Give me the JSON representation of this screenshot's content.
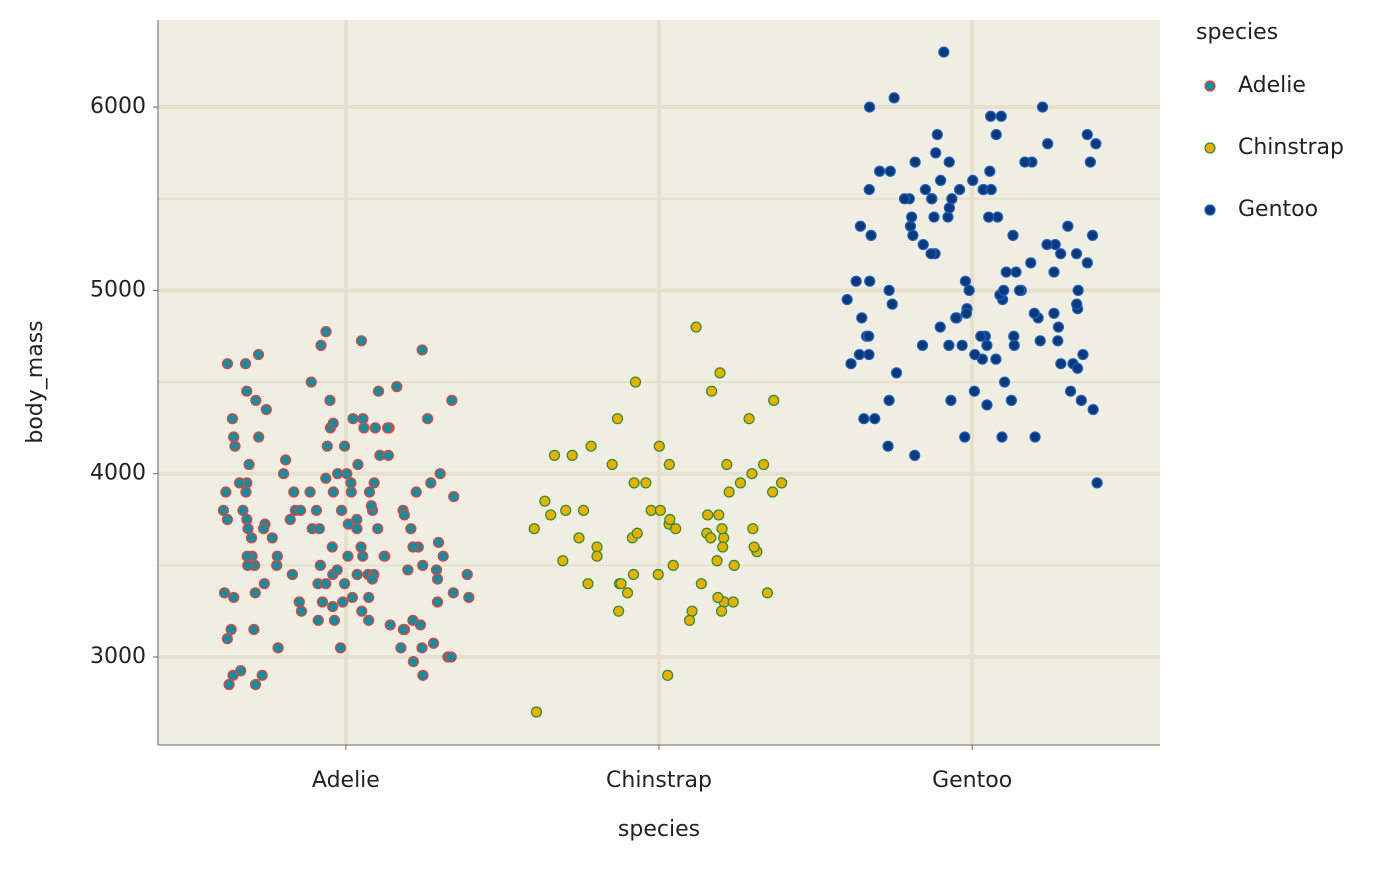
{
  "chart_data": {
    "type": "strip",
    "x_label": "species",
    "y_label": "body_mass",
    "categories": [
      "Adelie",
      "Chinstrap",
      "Gentoo"
    ],
    "legend_title": "species",
    "legend_position": "right",
    "ylim": [
      2520,
      6475
    ],
    "yticks": [
      3000,
      4000,
      5000,
      6000
    ],
    "yticks_minor": [
      3500,
      4500,
      5500
    ],
    "grid": true,
    "series": [
      {
        "name": "Adelie",
        "color": "#1b8a9a",
        "stroke": "#e0443a",
        "values": [
          3750,
          3800,
          3250,
          3450,
          3650,
          3625,
          4675,
          3475,
          4250,
          3300,
          3700,
          3200,
          3800,
          4400,
          3700,
          3450,
          4500,
          3325,
          4200,
          3400,
          3600,
          3800,
          3950,
          3800,
          3800,
          3550,
          3200,
          3150,
          3950,
          3250,
          3900,
          3300,
          3900,
          3325,
          4150,
          3950,
          3550,
          3300,
          4650,
          3150,
          3900,
          3100,
          4400,
          3000,
          4600,
          3425,
          2975,
          3450,
          4150,
          3500,
          4300,
          3450,
          4050,
          2900,
          3700,
          3550,
          3800,
          2850,
          3750,
          3150,
          4400,
          3600,
          4050,
          2850,
          3950,
          3350,
          4100,
          3050,
          4450,
          3600,
          3900,
          3550,
          4150,
          3700,
          4250,
          3700,
          3900,
          3550,
          4000,
          3200,
          4700,
          3800,
          4200,
          3350,
          3550,
          3800,
          3500,
          3950,
          3600,
          3550,
          4300,
          3400,
          4450,
          3300,
          4300,
          3700,
          4350,
          2900,
          4100,
          3725,
          4725,
          3075,
          4250,
          2925,
          3550,
          3750,
          3900,
          3175,
          4775,
          3825,
          4600,
          3200,
          4275,
          3900,
          4075,
          2900,
          3775,
          3350,
          3325,
          3150,
          3500,
          3450,
          3875,
          3050,
          4000,
          3275,
          4300,
          3050,
          4000,
          3325,
          3500,
          3500,
          4475,
          3425,
          3900,
          3175,
          3975,
          3400,
          4250,
          3400,
          3475,
          3050,
          3725,
          3000,
          3650,
          4250,
          3475,
          3450,
          3750,
          3700,
          4000
        ]
      },
      {
        "name": "Chinstrap",
        "color": "#e6b000",
        "stroke": "#2e8b2e",
        "values": [
          3500,
          3900,
          3650,
          3525,
          3725,
          3950,
          3250,
          3750,
          4150,
          3700,
          3800,
          3775,
          3700,
          4050,
          3575,
          4050,
          3300,
          3700,
          3450,
          4400,
          3600,
          3400,
          2900,
          3800,
          3300,
          4150,
          3400,
          3800,
          3700,
          4550,
          3200,
          4300,
          3350,
          4100,
          3600,
          3900,
          3850,
          4800,
          2700,
          4500,
          3950,
          3650,
          3550,
          3500,
          3675,
          4450,
          3400,
          4300,
          3250,
          3675,
          3325,
          3950,
          3600,
          4050,
          3350,
          3450,
          3250,
          4050,
          3800,
          3525,
          3950,
          3650,
          3650,
          4000,
          3400,
          3775,
          4100,
          3775
        ]
      },
      {
        "name": "Gentoo",
        "color": "#0a3a7a",
        "stroke": "#1f5fbf",
        "values": [
          4500,
          5700,
          4450,
          5700,
          5400,
          4550,
          4800,
          5200,
          4400,
          5150,
          4650,
          5550,
          4650,
          5850,
          4200,
          5850,
          4150,
          6300,
          4800,
          5350,
          5700,
          5000,
          4400,
          5050,
          5000,
          5100,
          4100,
          5650,
          4600,
          5550,
          5250,
          4700,
          5050,
          6050,
          5150,
          5400,
          4950,
          5250,
          4350,
          5350,
          3950,
          5700,
          4300,
          4750,
          5550,
          4900,
          4200,
          5400,
          5100,
          5300,
          4850,
          5300,
          4400,
          5000,
          4900,
          5050,
          4300,
          5000,
          4450,
          5550,
          4200,
          5300,
          4400,
          5650,
          4700,
          5700,
          4650,
          5800,
          4700,
          5550,
          4750,
          5000,
          5100,
          5200,
          4700,
          5800,
          4600,
          6000,
          4750,
          5950,
          4625,
          5450,
          4725,
          5350,
          4750,
          5600,
          4600,
          5300,
          4875,
          5550,
          4950,
          5400,
          4750,
          5650,
          4850,
          5200,
          4925,
          4875,
          4625,
          5250,
          4850,
          5600,
          4975,
          5500,
          4725,
          5500,
          4700,
          5500,
          4575,
          5500,
          5000,
          5950,
          4650,
          5500,
          4375,
          5850,
          4875,
          6000,
          4925,
          4850,
          5750,
          5200,
          5400
        ]
      }
    ]
  }
}
